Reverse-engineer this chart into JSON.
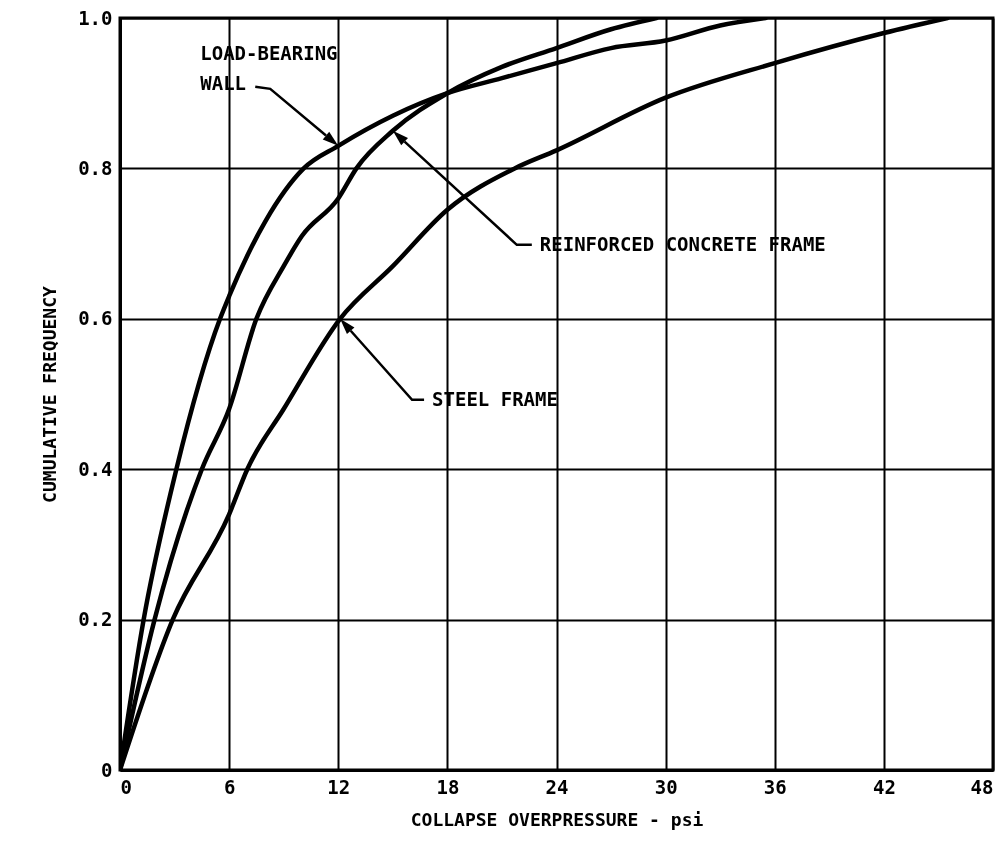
{
  "chart_data": {
    "type": "line",
    "xlabel": "COLLAPSE OVERPRESSURE - psi",
    "ylabel": "CUMULATIVE FREQUENCY",
    "xlim": [
      0,
      48
    ],
    "xticks": [
      0,
      6,
      12,
      18,
      24,
      30,
      36,
      42,
      48
    ],
    "ylim": [
      0,
      1
    ],
    "yticks": [
      0,
      {
        "value": 0.2,
        "label": "0.2"
      },
      {
        "value": 0.4,
        "label": "0.4"
      },
      {
        "value": 0.6,
        "label": "0.6"
      },
      {
        "value": 0.8,
        "label": "0.8"
      },
      {
        "value": 1,
        "label": "1.0"
      }
    ],
    "grid": true,
    "marker": "none",
    "line_style": "solid",
    "series": [
      {
        "color": "#000000",
        "x": [
          0,
          1.3,
          3.1,
          5.5,
          6,
          8,
          10.1,
          12,
          15,
          18,
          21,
          24,
          27,
          30,
          33,
          35.5
        ],
        "values": [
          0,
          0.2,
          0.4,
          0.6,
          0.63,
          0.73,
          0.8,
          0.83,
          0.87,
          0.9,
          0.92,
          0.94,
          0.96,
          0.97,
          0.99,
          1
        ]
      },
      {
        "color": "#000000",
        "x": [
          0,
          1.9,
          4.5,
          6,
          7.5,
          9,
          10,
          12,
          13,
          15,
          18,
          21,
          24,
          27,
          29.5
        ],
        "values": [
          0,
          0.2,
          0.4,
          0.48,
          0.6,
          0.67,
          0.71,
          0.76,
          0.8,
          0.85,
          0.9,
          0.935,
          0.96,
          0.985,
          1
        ]
      },
      {
        "color": "#000000",
        "x": [
          0,
          2.9,
          6,
          7,
          9,
          12.1,
          15,
          18,
          21.7,
          24,
          30,
          36,
          42,
          45.5
        ],
        "values": [
          0,
          0.2,
          0.34,
          0.4,
          0.48,
          0.6,
          0.67,
          0.745,
          0.8,
          0.824,
          0.894,
          0.94,
          0.98,
          1
        ]
      }
    ],
    "annotations": [
      {
        "text": "LOAD-BEARING\nWALL",
        "x": 12,
        "y": 0.83
      },
      "REINFORCED CONCRETE FRAME",
      "STEEL FRAME"
    ]
  }
}
